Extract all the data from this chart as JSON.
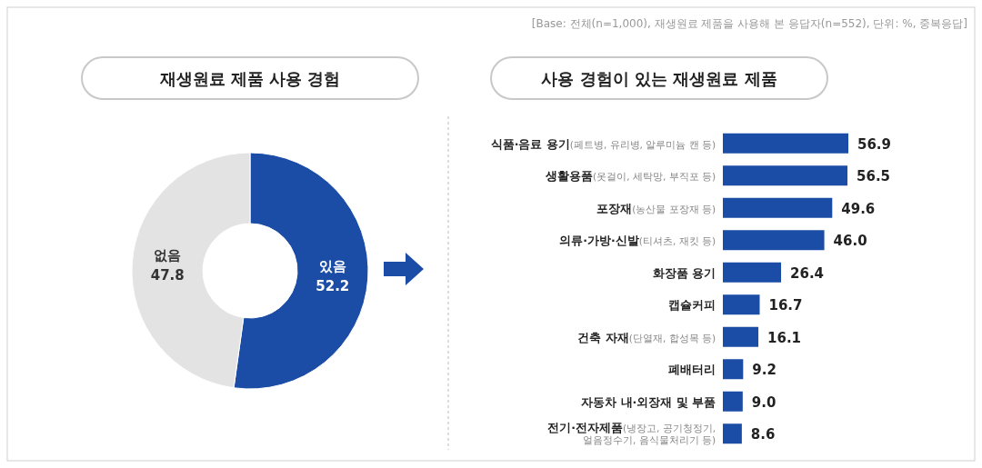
{
  "chart_data": [
    {
      "type": "donut",
      "title": "재생원료 제품 사용 경험",
      "annotations": [
        "[Base: 전체(n=1,000), 재생원료 제품을 사용해 본 응답자(n=552), 단위: %, 중복응답]"
      ],
      "categories": [
        "있음",
        "없음"
      ],
      "values": [
        52.2,
        47.8
      ],
      "colors": [
        "#1c4da6",
        "#e3e3e3"
      ],
      "data_labels": true
    },
    {
      "type": "bar",
      "orientation": "horizontal",
      "title": "사용 경험이 있는 재생원료 제품",
      "categories": [
        "식품·음료 용기(페트병, 유리병, 알루미늄 캔 등)",
        "생활용품(옷걸이, 세탁망, 부직포 등)",
        "포장재(농산물 포장재 등)",
        "의류·가방·신발(티셔츠, 재킷 등)",
        "화장품 용기",
        "캡슐커피",
        "건축 자재(단열재, 합성목 등)",
        "폐배터리",
        "자동차 내·외장재 및 부품",
        "전기·전자제품(냉장고, 공기청정기, 얼음정수기, 음식물처리기 등)"
      ],
      "values": [
        56.9,
        56.5,
        49.6,
        46.0,
        26.4,
        16.7,
        16.1,
        9.2,
        9.0,
        8.6
      ],
      "value_labels": [
        "56.9",
        "56.5",
        "49.6",
        "46.0",
        "26.4",
        "16.7",
        "16.1",
        "9.2",
        "9.0",
        "8.6"
      ],
      "color": "#1c4da6"
    }
  ]
}
